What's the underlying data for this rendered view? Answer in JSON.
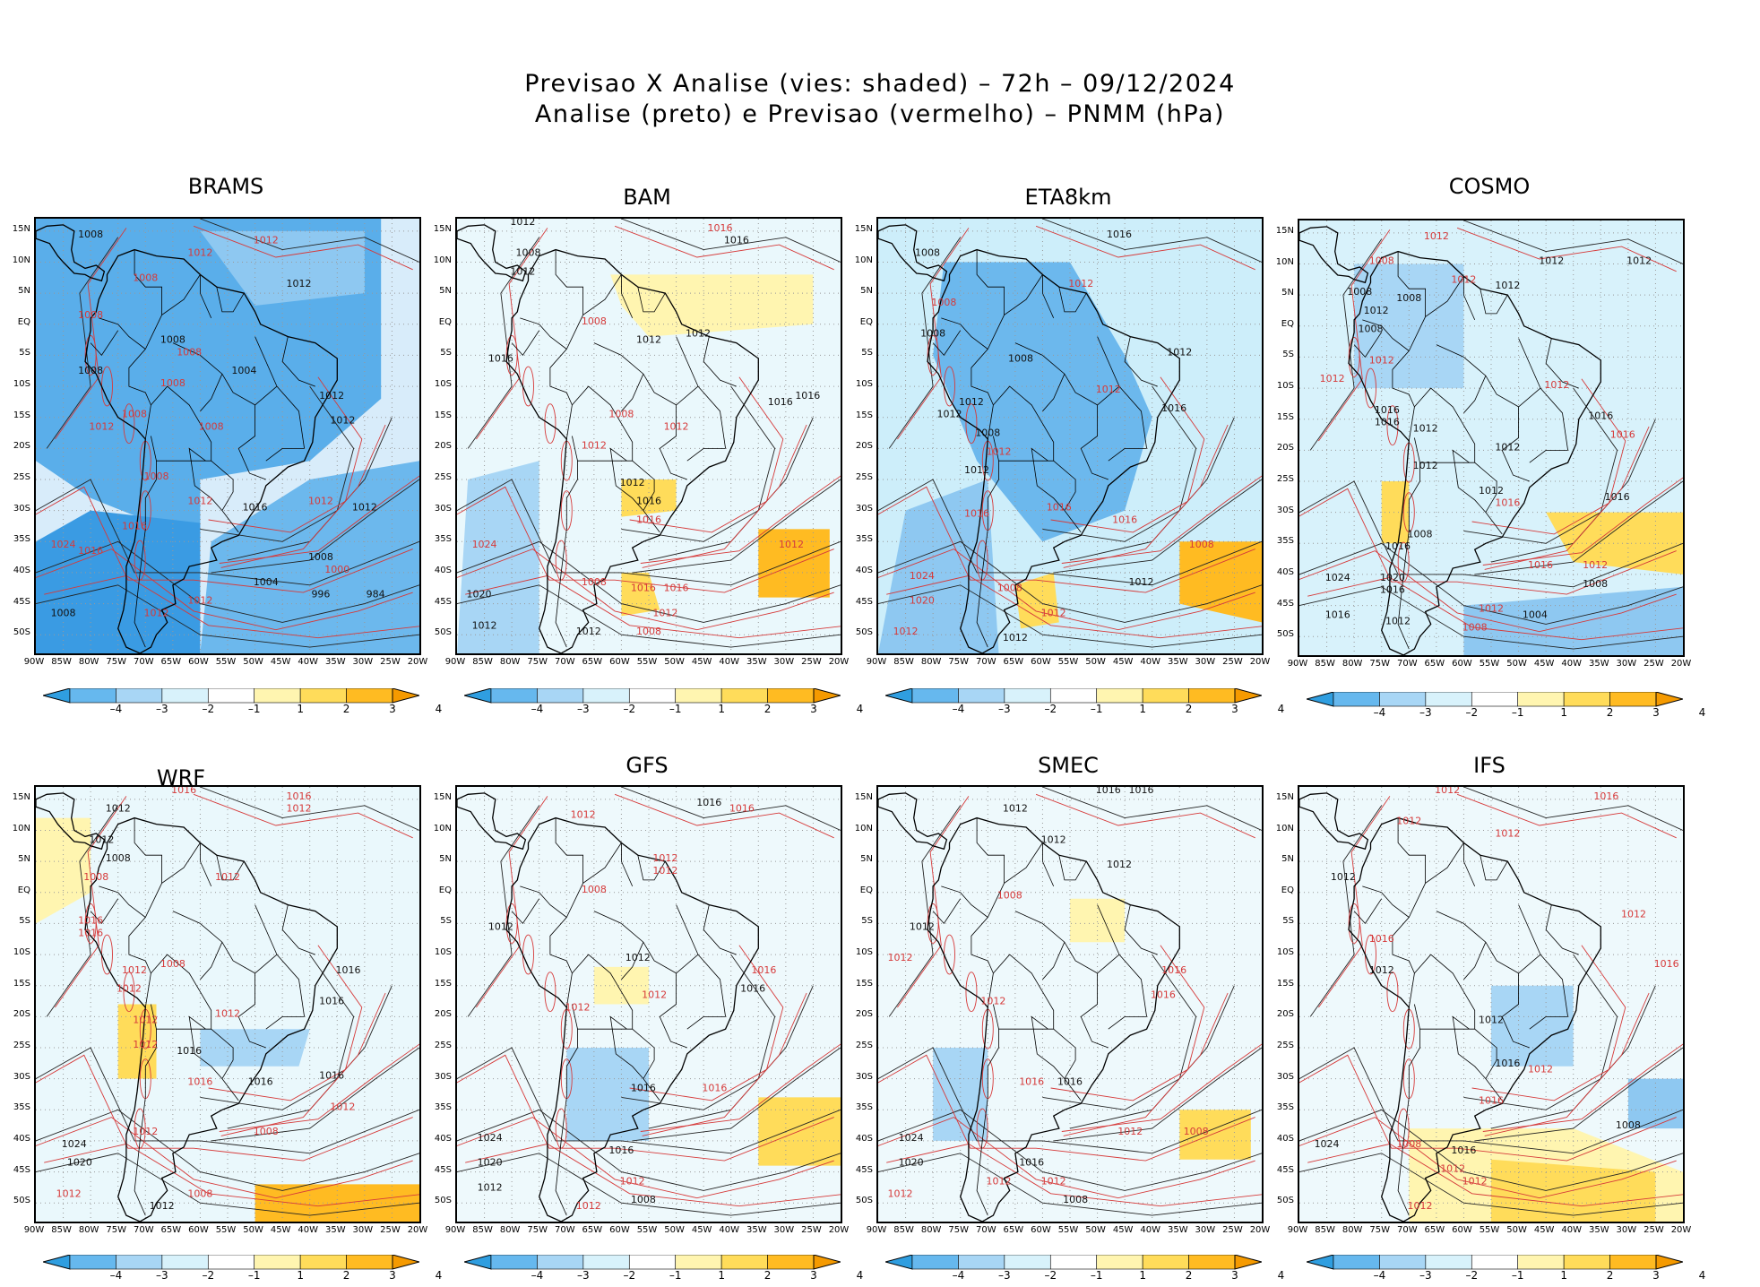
{
  "figure": {
    "title_line1": "Previsao X Analise (vies: shaded) – 72h – 09/12/2024",
    "title_line2": "Analise (preto) e Previsao (vermelho) – PNMM (hPa)"
  },
  "lat_labels": [
    "15N",
    "10N",
    "5N",
    "EQ",
    "5S",
    "10S",
    "15S",
    "20S",
    "25S",
    "30S",
    "35S",
    "40S",
    "45S",
    "50S"
  ],
  "lon_labels": [
    "90W",
    "85W",
    "80W",
    "75W",
    "70W",
    "65W",
    "60W",
    "55W",
    "50W",
    "45W",
    "40W",
    "35W",
    "30W",
    "25W",
    "20W"
  ],
  "colorbar": {
    "labels": [
      "–4",
      "–3",
      "–2",
      "–1",
      "1",
      "2",
      "3",
      "4"
    ],
    "colors": [
      "#2f9ee0",
      "#66b8ee",
      "#a8d6f5",
      "#d8f2fb",
      "#ffffff",
      "#fff5b0",
      "#ffdc5a",
      "#ffbb22",
      "#f59a00"
    ]
  },
  "panels": [
    {
      "name": "BRAMS",
      "bias": "blue",
      "labels": [
        {
          "t": "1008",
          "lon": -80,
          "lat": 14
        },
        {
          "t": "1012",
          "lon": -48,
          "lat": 13
        },
        {
          "t": "1012",
          "lon": -60,
          "lat": 11
        },
        {
          "t": "1008",
          "lon": -70,
          "lat": 7
        },
        {
          "t": "1012",
          "lon": -42,
          "lat": 6
        },
        {
          "t": "1008",
          "lon": -80,
          "lat": 1
        },
        {
          "t": "1008",
          "lon": -65,
          "lat": -3
        },
        {
          "t": "1008",
          "lon": -62,
          "lat": -5
        },
        {
          "t": "1008",
          "lon": -80,
          "lat": -8
        },
        {
          "t": "1008",
          "lon": -65,
          "lat": -10
        },
        {
          "t": "1004",
          "lon": -52,
          "lat": -8
        },
        {
          "t": "1012",
          "lon": -36,
          "lat": -12
        },
        {
          "t": "1008",
          "lon": -72,
          "lat": -15
        },
        {
          "t": "1012",
          "lon": -78,
          "lat": -17
        },
        {
          "t": "1008",
          "lon": -58,
          "lat": -17
        },
        {
          "t": "1012",
          "lon": -34,
          "lat": -16
        },
        {
          "t": "1008",
          "lon": -68,
          "lat": -25
        },
        {
          "t": "1012",
          "lon": -60,
          "lat": -29
        },
        {
          "t": "1016",
          "lon": -50,
          "lat": -30
        },
        {
          "t": "1012",
          "lon": -38,
          "lat": -29
        },
        {
          "t": "1012",
          "lon": -30,
          "lat": -30
        },
        {
          "t": "1016",
          "lon": -72,
          "lat": -33
        },
        {
          "t": "1024",
          "lon": -85,
          "lat": -36
        },
        {
          "t": "1016",
          "lon": -80,
          "lat": -37
        },
        {
          "t": "1008",
          "lon": -38,
          "lat": -38
        },
        {
          "t": "1004",
          "lon": -48,
          "lat": -42
        },
        {
          "t": "1000",
          "lon": -35,
          "lat": -40
        },
        {
          "t": "1012",
          "lon": -60,
          "lat": -45
        },
        {
          "t": "1012",
          "lon": -68,
          "lat": -47
        },
        {
          "t": "1008",
          "lon": -85,
          "lat": -47
        },
        {
          "t": "996",
          "lon": -38,
          "lat": -44
        },
        {
          "t": "984",
          "lon": -28,
          "lat": -44
        }
      ]
    },
    {
      "name": "BAM",
      "bias": "mixed",
      "labels": [
        {
          "t": "1012",
          "lon": -78,
          "lat": 16
        },
        {
          "t": "1016",
          "lon": -42,
          "lat": 15
        },
        {
          "t": "1016",
          "lon": -39,
          "lat": 13
        },
        {
          "t": "1008",
          "lon": -77,
          "lat": 11
        },
        {
          "t": "1012",
          "lon": -78,
          "lat": 8
        },
        {
          "t": "1008",
          "lon": -65,
          "lat": 0
        },
        {
          "t": "1012",
          "lon": -55,
          "lat": -3
        },
        {
          "t": "1012",
          "lon": -46,
          "lat": -2
        },
        {
          "t": "1016",
          "lon": -82,
          "lat": -6
        },
        {
          "t": "1016",
          "lon": -31,
          "lat": -13
        },
        {
          "t": "1016",
          "lon": -26,
          "lat": -12
        },
        {
          "t": "1008",
          "lon": -60,
          "lat": -15
        },
        {
          "t": "1012",
          "lon": -50,
          "lat": -17
        },
        {
          "t": "1012",
          "lon": -65,
          "lat": -20
        },
        {
          "t": "1012",
          "lon": -58,
          "lat": -26
        },
        {
          "t": "1016",
          "lon": -55,
          "lat": -29
        },
        {
          "t": "1016",
          "lon": -55,
          "lat": -32
        },
        {
          "t": "1024",
          "lon": -85,
          "lat": -36
        },
        {
          "t": "1012",
          "lon": -29,
          "lat": -36
        },
        {
          "t": "1008",
          "lon": -65,
          "lat": -42
        },
        {
          "t": "1016",
          "lon": -56,
          "lat": -43
        },
        {
          "t": "1016",
          "lon": -50,
          "lat": -43
        },
        {
          "t": "1020",
          "lon": -86,
          "lat": -44
        },
        {
          "t": "1012",
          "lon": -52,
          "lat": -47
        },
        {
          "t": "1012",
          "lon": -85,
          "lat": -49
        },
        {
          "t": "1008",
          "lon": -55,
          "lat": -50
        },
        {
          "t": "1012",
          "lon": -66,
          "lat": -50
        }
      ]
    },
    {
      "name": "ETA8km",
      "bias": "blue2",
      "labels": [
        {
          "t": "1016",
          "lon": -46,
          "lat": 14
        },
        {
          "t": "1008",
          "lon": -81,
          "lat": 11
        },
        {
          "t": "1012",
          "lon": -53,
          "lat": 6
        },
        {
          "t": "1008",
          "lon": -78,
          "lat": 3
        },
        {
          "t": "1008",
          "lon": -80,
          "lat": -2
        },
        {
          "t": "1012",
          "lon": -35,
          "lat": -5
        },
        {
          "t": "1008",
          "lon": -64,
          "lat": -6
        },
        {
          "t": "1016",
          "lon": -36,
          "lat": -14
        },
        {
          "t": "1012",
          "lon": -73,
          "lat": -13
        },
        {
          "t": "1012",
          "lon": -77,
          "lat": -15
        },
        {
          "t": "1012",
          "lon": -48,
          "lat": -11
        },
        {
          "t": "1008",
          "lon": -70,
          "lat": -18
        },
        {
          "t": "1012",
          "lon": -68,
          "lat": -21
        },
        {
          "t": "1012",
          "lon": -72,
          "lat": -24
        },
        {
          "t": "1016",
          "lon": -72,
          "lat": -31
        },
        {
          "t": "1016",
          "lon": -57,
          "lat": -30
        },
        {
          "t": "1016",
          "lon": -45,
          "lat": -32
        },
        {
          "t": "1008",
          "lon": -31,
          "lat": -36
        },
        {
          "t": "1024",
          "lon": -82,
          "lat": -41
        },
        {
          "t": "1008",
          "lon": -66,
          "lat": -43
        },
        {
          "t": "1012",
          "lon": -42,
          "lat": -42
        },
        {
          "t": "1020",
          "lon": -82,
          "lat": -45
        },
        {
          "t": "1012",
          "lon": -58,
          "lat": -47
        },
        {
          "t": "1012",
          "lon": -85,
          "lat": -50
        },
        {
          "t": "1012",
          "lon": -65,
          "lat": -51
        }
      ]
    },
    {
      "name": "COSMO",
      "bias": "mixed2",
      "labels": [
        {
          "t": "1012",
          "lon": -65,
          "lat": 14
        },
        {
          "t": "1012",
          "lon": -44,
          "lat": 10
        },
        {
          "t": "1012",
          "lon": -28,
          "lat": 10
        },
        {
          "t": "1008",
          "lon": -75,
          "lat": 10
        },
        {
          "t": "1012",
          "lon": -60,
          "lat": 7
        },
        {
          "t": "1012",
          "lon": -52,
          "lat": 6
        },
        {
          "t": "1008",
          "lon": -79,
          "lat": 5
        },
        {
          "t": "1012",
          "lon": -76,
          "lat": 2
        },
        {
          "t": "1008",
          "lon": -70,
          "lat": 4
        },
        {
          "t": "1008",
          "lon": -77,
          "lat": -1
        },
        {
          "t": "1012",
          "lon": -75,
          "lat": -6
        },
        {
          "t": "1012",
          "lon": -84,
          "lat": -9
        },
        {
          "t": "1012",
          "lon": -43,
          "lat": -10
        },
        {
          "t": "1016",
          "lon": -74,
          "lat": -14
        },
        {
          "t": "1016",
          "lon": -74,
          "lat": -16
        },
        {
          "t": "1012",
          "lon": -67,
          "lat": -17
        },
        {
          "t": "1016",
          "lon": -35,
          "lat": -15
        },
        {
          "t": "1016",
          "lon": -31,
          "lat": -18
        },
        {
          "t": "1012",
          "lon": -67,
          "lat": -23
        },
        {
          "t": "1012",
          "lon": -52,
          "lat": -20
        },
        {
          "t": "1016",
          "lon": -52,
          "lat": -29
        },
        {
          "t": "1012",
          "lon": -55,
          "lat": -27
        },
        {
          "t": "1016",
          "lon": -32,
          "lat": -28
        },
        {
          "t": "1008",
          "lon": -68,
          "lat": -34
        },
        {
          "t": "1016",
          "lon": -72,
          "lat": -36
        },
        {
          "t": "1016",
          "lon": -46,
          "lat": -39
        },
        {
          "t": "1012",
          "lon": -36,
          "lat": -39
        },
        {
          "t": "1024",
          "lon": -83,
          "lat": -41
        },
        {
          "t": "1020",
          "lon": -73,
          "lat": -41
        },
        {
          "t": "1016",
          "lon": -73,
          "lat": -43
        },
        {
          "t": "1008",
          "lon": -36,
          "lat": -42
        },
        {
          "t": "1012",
          "lon": -55,
          "lat": -46
        },
        {
          "t": "1016",
          "lon": -83,
          "lat": -47
        },
        {
          "t": "1012",
          "lon": -72,
          "lat": -48
        },
        {
          "t": "1008",
          "lon": -58,
          "lat": -49
        },
        {
          "t": "1004",
          "lon": -47,
          "lat": -47
        }
      ]
    },
    {
      "name": "WRF",
      "bias": "mixed3",
      "labels": [
        {
          "t": "1016",
          "lon": -63,
          "lat": 16
        },
        {
          "t": "1016",
          "lon": -42,
          "lat": 15
        },
        {
          "t": "1012",
          "lon": -42,
          "lat": 13
        },
        {
          "t": "1012",
          "lon": -75,
          "lat": 13
        },
        {
          "t": "1012",
          "lon": -78,
          "lat": 8
        },
        {
          "t": "1008",
          "lon": -75,
          "lat": 5
        },
        {
          "t": "1008",
          "lon": -79,
          "lat": 2
        },
        {
          "t": "1012",
          "lon": -55,
          "lat": 2
        },
        {
          "t": "1016",
          "lon": -80,
          "lat": -5
        },
        {
          "t": "1016",
          "lon": -80,
          "lat": -7
        },
        {
          "t": "1012",
          "lon": -72,
          "lat": -13
        },
        {
          "t": "1008",
          "lon": -65,
          "lat": -12
        },
        {
          "t": "1012",
          "lon": -73,
          "lat": -16
        },
        {
          "t": "1016",
          "lon": -33,
          "lat": -13
        },
        {
          "t": "1016",
          "lon": -36,
          "lat": -18
        },
        {
          "t": "1012",
          "lon": -55,
          "lat": -20
        },
        {
          "t": "1012",
          "lon": -70,
          "lat": -21
        },
        {
          "t": "1012",
          "lon": -70,
          "lat": -25
        },
        {
          "t": "1016",
          "lon": -62,
          "lat": -26
        },
        {
          "t": "1016",
          "lon": -60,
          "lat": -31
        },
        {
          "t": "1016",
          "lon": -49,
          "lat": -31
        },
        {
          "t": "1016",
          "lon": -36,
          "lat": -30
        },
        {
          "t": "1012",
          "lon": -34,
          "lat": -35
        },
        {
          "t": "1012",
          "lon": -70,
          "lat": -39
        },
        {
          "t": "1024",
          "lon": -83,
          "lat": -41
        },
        {
          "t": "1008",
          "lon": -48,
          "lat": -39
        },
        {
          "t": "1020",
          "lon": -82,
          "lat": -44
        },
        {
          "t": "1012",
          "lon": -84,
          "lat": -49
        },
        {
          "t": "1012",
          "lon": -67,
          "lat": -51
        },
        {
          "t": "1008",
          "lon": -60,
          "lat": -49
        }
      ]
    },
    {
      "name": "GFS",
      "bias": "mixed4",
      "labels": [
        {
          "t": "1016",
          "lon": -44,
          "lat": 14
        },
        {
          "t": "1016",
          "lon": -38,
          "lat": 13
        },
        {
          "t": "1012",
          "lon": -67,
          "lat": 12
        },
        {
          "t": "1012",
          "lon": -52,
          "lat": 5
        },
        {
          "t": "1012",
          "lon": -52,
          "lat": 3
        },
        {
          "t": "1008",
          "lon": -65,
          "lat": 0
        },
        {
          "t": "1012",
          "lon": -82,
          "lat": -6
        },
        {
          "t": "1012",
          "lon": -57,
          "lat": -11
        },
        {
          "t": "1016",
          "lon": -34,
          "lat": -13
        },
        {
          "t": "1016",
          "lon": -36,
          "lat": -16
        },
        {
          "t": "1012",
          "lon": -68,
          "lat": -19
        },
        {
          "t": "1012",
          "lon": -54,
          "lat": -17
        },
        {
          "t": "1016",
          "lon": -56,
          "lat": -32
        },
        {
          "t": "1016",
          "lon": -43,
          "lat": -32
        },
        {
          "t": "1024",
          "lon": -84,
          "lat": -40
        },
        {
          "t": "1016",
          "lon": -60,
          "lat": -42
        },
        {
          "t": "1020",
          "lon": -84,
          "lat": -44
        },
        {
          "t": "1012",
          "lon": -58,
          "lat": -47
        },
        {
          "t": "1012",
          "lon": -84,
          "lat": -48
        },
        {
          "t": "1008",
          "lon": -56,
          "lat": -50
        },
        {
          "t": "1012",
          "lon": -66,
          "lat": -51
        }
      ]
    },
    {
      "name": "SMEC",
      "bias": "mixed5",
      "labels": [
        {
          "t": "1016",
          "lon": -48,
          "lat": 16
        },
        {
          "t": "1016",
          "lon": -42,
          "lat": 16
        },
        {
          "t": "1012",
          "lon": -65,
          "lat": 13
        },
        {
          "t": "1012",
          "lon": -58,
          "lat": 8
        },
        {
          "t": "1012",
          "lon": -46,
          "lat": 4
        },
        {
          "t": "1008",
          "lon": -66,
          "lat": -1
        },
        {
          "t": "1012",
          "lon": -82,
          "lat": -6
        },
        {
          "t": "1012",
          "lon": -86,
          "lat": -11
        },
        {
          "t": "1016",
          "lon": -36,
          "lat": -13
        },
        {
          "t": "1016",
          "lon": -38,
          "lat": -17
        },
        {
          "t": "1012",
          "lon": -69,
          "lat": -18
        },
        {
          "t": "1016",
          "lon": -55,
          "lat": -31
        },
        {
          "t": "1016",
          "lon": -62,
          "lat": -31
        },
        {
          "t": "1024",
          "lon": -84,
          "lat": -40
        },
        {
          "t": "1012",
          "lon": -44,
          "lat": -39
        },
        {
          "t": "1008",
          "lon": -32,
          "lat": -39
        },
        {
          "t": "1020",
          "lon": -84,
          "lat": -44
        },
        {
          "t": "1016",
          "lon": -62,
          "lat": -44
        },
        {
          "t": "1012",
          "lon": -58,
          "lat": -47
        },
        {
          "t": "1012",
          "lon": -86,
          "lat": -49
        },
        {
          "t": "1008",
          "lon": -54,
          "lat": -50
        },
        {
          "t": "1012",
          "lon": -68,
          "lat": -47
        }
      ]
    },
    {
      "name": "IFS",
      "bias": "mixed6",
      "labels": [
        {
          "t": "1016",
          "lon": -34,
          "lat": 15
        },
        {
          "t": "1012",
          "lon": -63,
          "lat": 16
        },
        {
          "t": "1012",
          "lon": -70,
          "lat": 11
        },
        {
          "t": "1012",
          "lon": -52,
          "lat": 9
        },
        {
          "t": "1012",
          "lon": -82,
          "lat": 2
        },
        {
          "t": "1012",
          "lon": -29,
          "lat": -4
        },
        {
          "t": "1016",
          "lon": -75,
          "lat": -8
        },
        {
          "t": "1016",
          "lon": -23,
          "lat": -12
        },
        {
          "t": "1012",
          "lon": -75,
          "lat": -13
        },
        {
          "t": "1012",
          "lon": -55,
          "lat": -21
        },
        {
          "t": "1016",
          "lon": -52,
          "lat": -28
        },
        {
          "t": "1012",
          "lon": -46,
          "lat": -29
        },
        {
          "t": "1016",
          "lon": -55,
          "lat": -34
        },
        {
          "t": "1008",
          "lon": -30,
          "lat": -38
        },
        {
          "t": "1024",
          "lon": -85,
          "lat": -41
        },
        {
          "t": "1008",
          "lon": -70,
          "lat": -41
        },
        {
          "t": "1016",
          "lon": -60,
          "lat": -42
        },
        {
          "t": "1012",
          "lon": -62,
          "lat": -45
        },
        {
          "t": "1012",
          "lon": -58,
          "lat": -47
        },
        {
          "t": "1012",
          "lon": -68,
          "lat": -51
        }
      ]
    }
  ]
}
